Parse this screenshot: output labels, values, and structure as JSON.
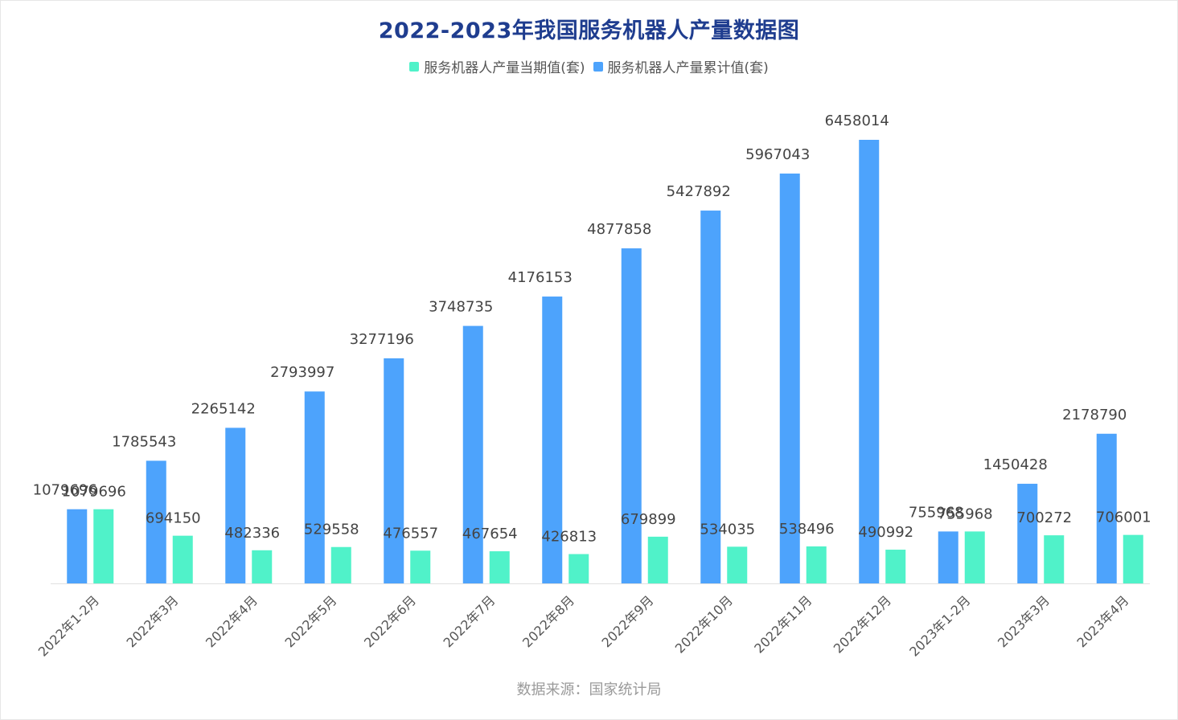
{
  "chart_data": {
    "type": "bar",
    "title": "2022-2023年我国服务机器人产量数据图",
    "xlabel": "",
    "ylabel": "",
    "ylim": [
      0,
      7000000
    ],
    "grid": false,
    "legend_position": "top-center",
    "categories": [
      "2022年1-2月",
      "2022年3月",
      "2022年4月",
      "2022年5月",
      "2022年6月",
      "2022年7月",
      "2022年8月",
      "2022年9月",
      "2022年10月",
      "2022年11月",
      "2022年12月",
      "2023年1-2月",
      "2023年3月",
      "2023年4月"
    ],
    "series": [
      {
        "name": "服务机器人产量累计值(套)",
        "color": "#4da3fc",
        "values": [
          1079696,
          1785543,
          2265142,
          2793997,
          3277196,
          3748735,
          4176153,
          4877858,
          5427892,
          5967043,
          6458014,
          755968,
          1450428,
          2178790
        ]
      },
      {
        "name": "服务机器人产量当期值(套)",
        "color": "#50f2c9",
        "values": [
          1079696,
          694150,
          482336,
          529558,
          476557,
          467654,
          426813,
          679899,
          534035,
          538496,
          490992,
          755968,
          700272,
          706001
        ]
      }
    ],
    "source": "数据来源：国家统计局"
  }
}
